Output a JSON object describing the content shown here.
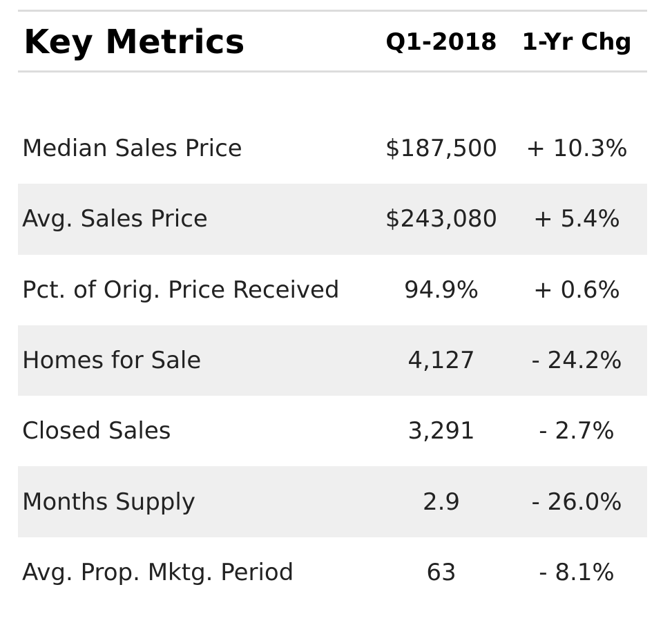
{
  "header": {
    "title": "Key Metrics",
    "period_label": "Q1-2018",
    "change_label": "1-Yr Chg"
  },
  "metrics": [
    {
      "label": "Median Sales Price",
      "value": "$187,500",
      "change": "+ 10.3%"
    },
    {
      "label": "Avg. Sales Price",
      "value": "$243,080",
      "change": "+ 5.4%"
    },
    {
      "label": "Pct. of Orig. Price Received",
      "value": "94.9%",
      "change": "+ 0.6%"
    },
    {
      "label": "Homes for Sale",
      "value": "4,127",
      "change": "- 24.2%"
    },
    {
      "label": "Closed Sales",
      "value": "3,291",
      "change": "- 2.7%"
    },
    {
      "label": "Months Supply",
      "value": "2.9",
      "change": "- 26.0%"
    },
    {
      "label": "Avg. Prop. Mktg. Period",
      "value": "63",
      "change": "- 8.1%"
    }
  ],
  "colors": {
    "rule": "#dcdcdc",
    "row_shade": "#efefef",
    "text": "#222222"
  }
}
